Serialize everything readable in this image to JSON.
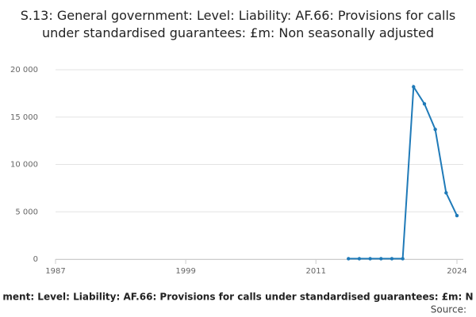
{
  "chart_data": {
    "type": "line",
    "title": "S.13: General government: Level: Liability: AF.66: Provisions for calls under standardised guarantees: £m: Non seasonally adjusted",
    "x_label": "ment: Level: Liability: AF.66: Provisions for calls under standardised guarantees: £m: N",
    "source": "Source:",
    "x": [
      2014,
      2015,
      2016,
      2017,
      2018,
      2019,
      2020,
      2021,
      2022,
      2023,
      2024
    ],
    "series": [
      {
        "name": "S.13: General government: Level: Liability: AF.66: Provisions for calls under standardised guarantees: £m: Non seasonally adjusted",
        "color": "#1f7ab8",
        "values": [
          50,
          50,
          50,
          50,
          50,
          50,
          18200,
          16400,
          13700,
          7000,
          4600
        ]
      }
    ],
    "xlim": [
      1987,
      2024
    ],
    "xticks": [
      1987,
      1999,
      2011,
      2024
    ],
    "ylim": [
      0,
      20000
    ],
    "yticks": [
      0,
      {
        "value": 5000,
        "label": "5 000"
      },
      {
        "value": 10000,
        "label": "10 000"
      },
      {
        "value": 15000,
        "label": "15 000"
      },
      {
        "value": 20000,
        "label": "20 000"
      }
    ],
    "grid": true
  }
}
